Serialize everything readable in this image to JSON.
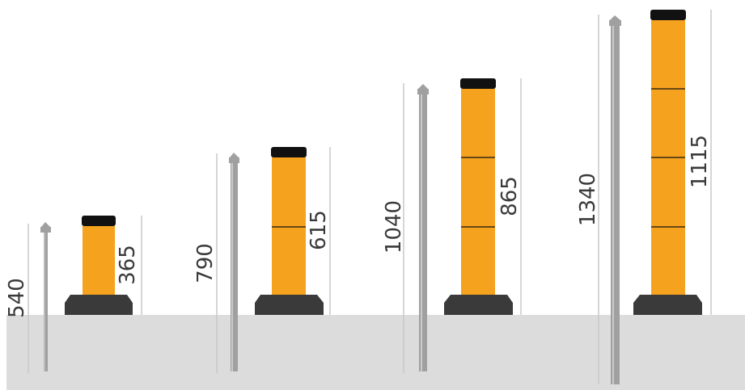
{
  "colors": {
    "ground": "#dcdcdc",
    "post_body": "#f5a21f",
    "post_cap": "#111111",
    "base": "#3a3a3a",
    "rod": "#a0a0a0",
    "dim_line": "#c8c8c8",
    "text": "#3a3a3a"
  },
  "bollards": [
    {
      "total_label": "540",
      "post_label": "365",
      "segments": 1
    },
    {
      "total_label": "790",
      "post_label": "615",
      "segments": 2
    },
    {
      "total_label": "1040",
      "post_label": "865",
      "segments": 3
    },
    {
      "total_label": "1340",
      "post_label": "1115",
      "segments": 4
    }
  ]
}
